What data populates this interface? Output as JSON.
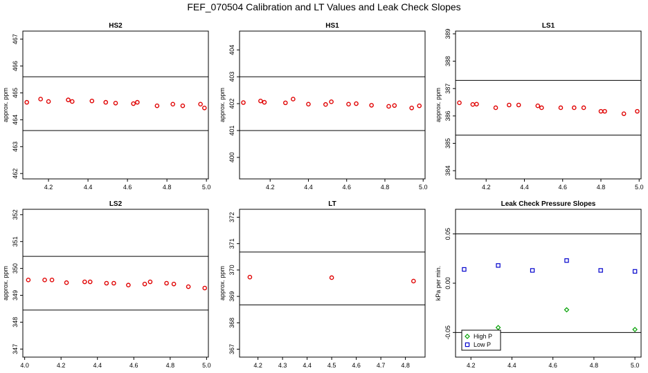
{
  "figure_title": "FEF_070504  Calibration and LT Values and Leak Check Slopes",
  "chart_data": [
    {
      "type": "scatter",
      "title": "HS2",
      "ylabel": "approx. ppm",
      "xlim": [
        4.07,
        5.01
      ],
      "ylim": [
        461.8,
        467.3
      ],
      "xticks": [
        "4.2",
        "4.4",
        "4.6",
        "4.8",
        "5.0"
      ],
      "yticks": [
        "462",
        "463",
        "464",
        "465",
        "466",
        "467"
      ],
      "hlines": [
        465.6,
        463.6
      ],
      "series": [
        {
          "name": "Calibration",
          "color": "#e00000",
          "symbol": "circle",
          "x": [
            4.09,
            4.16,
            4.2,
            4.3,
            4.32,
            4.42,
            4.49,
            4.54,
            4.63,
            4.65,
            4.75,
            4.83,
            4.88,
            4.97,
            4.99
          ],
          "y": [
            464.65,
            464.77,
            464.68,
            464.74,
            464.68,
            464.7,
            464.65,
            464.62,
            464.6,
            464.65,
            464.52,
            464.58,
            464.52,
            464.58,
            464.44
          ]
        }
      ]
    },
    {
      "type": "scatter",
      "title": "HS1",
      "ylabel": "approx. ppm",
      "xlim": [
        4.04,
        5.01
      ],
      "ylim": [
        399.2,
        404.7
      ],
      "xticks": [
        "4.2",
        "4.4",
        "4.6",
        "4.8",
        "5.0"
      ],
      "yticks": [
        "400",
        "401",
        "402",
        "403",
        "404"
      ],
      "hlines": [
        403.0,
        401.0
      ],
      "series": [
        {
          "name": "Calibration",
          "color": "#e00000",
          "symbol": "circle",
          "x": [
            4.06,
            4.15,
            4.17,
            4.28,
            4.32,
            4.4,
            4.49,
            4.52,
            4.61,
            4.65,
            4.73,
            4.82,
            4.85,
            4.94,
            4.98
          ],
          "y": [
            402.04,
            402.1,
            402.05,
            402.03,
            402.17,
            401.98,
            401.97,
            402.07,
            401.98,
            402.0,
            401.94,
            401.9,
            401.93,
            401.84,
            401.92
          ]
        }
      ]
    },
    {
      "type": "scatter",
      "title": "LS1",
      "ylabel": "approx. ppm",
      "xlim": [
        4.04,
        5.01
      ],
      "ylim": [
        383.7,
        389.1
      ],
      "xticks": [
        "4.2",
        "4.4",
        "4.6",
        "4.8",
        "5.0"
      ],
      "yticks": [
        "384",
        "385",
        "386",
        "387",
        "388",
        "389"
      ],
      "hlines": [
        387.3,
        385.3
      ],
      "series": [
        {
          "name": "Calibration",
          "color": "#e00000",
          "symbol": "circle",
          "x": [
            4.06,
            4.13,
            4.15,
            4.25,
            4.32,
            4.37,
            4.47,
            4.49,
            4.59,
            4.66,
            4.71,
            4.8,
            4.82,
            4.92,
            4.99
          ],
          "y": [
            386.48,
            386.42,
            386.43,
            386.3,
            386.4,
            386.4,
            386.37,
            386.3,
            386.3,
            386.3,
            386.3,
            386.17,
            386.17,
            386.08,
            386.17
          ]
        }
      ]
    },
    {
      "type": "scatter",
      "title": "LS2",
      "ylabel": "approx. ppm",
      "xlim": [
        3.99,
        5.01
      ],
      "ylim": [
        346.7,
        352.2
      ],
      "xticks": [
        "4.0",
        "4.2",
        "4.4",
        "4.6",
        "4.8",
        "5.0"
      ],
      "yticks": [
        "347",
        "348",
        "349",
        "350",
        "351",
        "352"
      ],
      "hlines": [
        350.45,
        348.45
      ],
      "series": [
        {
          "name": "Calibration",
          "color": "#e00000",
          "symbol": "circle",
          "x": [
            4.02,
            4.11,
            4.15,
            4.23,
            4.33,
            4.36,
            4.45,
            4.49,
            4.57,
            4.66,
            4.69,
            4.78,
            4.82,
            4.9,
            4.99
          ],
          "y": [
            349.57,
            349.57,
            349.57,
            349.47,
            349.5,
            349.5,
            349.45,
            349.45,
            349.38,
            349.42,
            349.5,
            349.45,
            349.42,
            349.32,
            349.27
          ]
        }
      ]
    },
    {
      "type": "scatter",
      "title": "LT",
      "ylabel": "approx. ppm",
      "xlim": [
        4.125,
        4.88
      ],
      "ylim": [
        366.7,
        372.3
      ],
      "xticks": [
        "4.2",
        "4.3",
        "4.4",
        "4.5",
        "4.6",
        "4.7",
        "4.8"
      ],
      "yticks": [
        "367",
        "368",
        "369",
        "370",
        "371",
        "372"
      ],
      "hlines": [
        370.68,
        368.68
      ],
      "series": [
        {
          "name": "LT",
          "color": "#e00000",
          "symbol": "circle",
          "x": [
            4.167,
            4.5,
            4.833
          ],
          "y": [
            369.73,
            369.71,
            369.58
          ]
        }
      ]
    },
    {
      "type": "scatter",
      "title": "Leak Check Pressure Slopes",
      "ylabel": "kPa per min.",
      "xlim": [
        4.125,
        5.03
      ],
      "ylim": [
        -0.075,
        0.075
      ],
      "xticks": [
        "4.2",
        "4.4",
        "4.6",
        "4.8",
        "5.0"
      ],
      "yticks": [
        "-0.05",
        "0.00",
        "0.05"
      ],
      "hlines": [
        0.05,
        -0.05
      ],
      "legend": {
        "position": "bottom-left",
        "entries": [
          "High P",
          "Low P"
        ]
      },
      "series": [
        {
          "name": "High P",
          "color": "#00a000",
          "symbol": "diamond",
          "x": [
            4.333,
            4.667,
            5.0
          ],
          "y": [
            -0.045,
            -0.027,
            -0.047
          ]
        },
        {
          "name": "Low P",
          "color": "#0000cc",
          "symbol": "square",
          "x": [
            4.167,
            4.333,
            4.5,
            4.667,
            4.833,
            5.0
          ],
          "y": [
            0.014,
            0.018,
            0.013,
            0.023,
            0.013,
            0.012
          ]
        }
      ]
    }
  ]
}
